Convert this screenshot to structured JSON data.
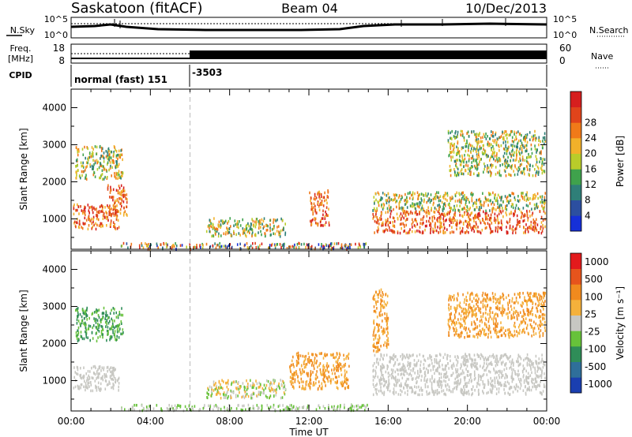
{
  "header": {
    "station": "Saskatoon (fitACF)",
    "beam": "Beam 04",
    "date": "10/Dec/2013"
  },
  "strips": {
    "nsky_label": "N.Sky",
    "nsearch_label": "N.Search",
    "nsky_ticks": [
      "10^5",
      "10^0"
    ],
    "nsearch_ticks": [
      "10^5",
      "10^0"
    ],
    "freq_label_1": "Freq.",
    "freq_label_2": "[MHz]",
    "freq_ticks": [
      "18",
      "8"
    ],
    "nave_label": "Nave",
    "nave_ticks": [
      "60",
      "0"
    ],
    "cpid_label": "CPID",
    "cpid_mode": "normal (fast) 151",
    "cpid_alt": "-3503"
  },
  "chart_data": [
    {
      "type": "heatmap",
      "name": "Power",
      "ylabel": "Slant Range [km]",
      "xlabel": "",
      "x_ticks": [
        "00:00",
        "04:00",
        "08:00",
        "12:00",
        "16:00",
        "20:00",
        "00:00"
      ],
      "y_ticks": [
        1000,
        2000,
        3000,
        4000
      ],
      "ylim": [
        180,
        4500
      ],
      "xlim_hours": [
        0,
        24
      ],
      "colorbar_label": "Power [dB]",
      "colorbar_ticks": [
        "4",
        "8",
        "12",
        "16",
        "20",
        "24",
        "28"
      ],
      "colors": [
        "#1630d8",
        "#2c4fa0",
        "#2f7f78",
        "#3fa24c",
        "#b9cc2a",
        "#f2b12a",
        "#f07a19",
        "#e0441b",
        "#d61e1e"
      ],
      "features": [
        {
          "t0": 0.1,
          "t1": 2.4,
          "r0": 760,
          "r1": 1420,
          "level": "high"
        },
        {
          "t0": 1.8,
          "t1": 2.8,
          "r0": 1100,
          "r1": 1950,
          "level": "high"
        },
        {
          "t0": 0.2,
          "t1": 2.6,
          "r0": 2100,
          "r1": 3000,
          "level": "medium"
        },
        {
          "t0": 2.5,
          "t1": 15.0,
          "r0": 220,
          "r1": 380,
          "level": "mixed"
        },
        {
          "t0": 6.8,
          "t1": 10.8,
          "r0": 560,
          "r1": 1050,
          "level": "medium"
        },
        {
          "t0": 12.0,
          "t1": 13.0,
          "r0": 850,
          "r1": 1800,
          "level": "high"
        },
        {
          "t0": 15.2,
          "t1": 23.9,
          "r0": 650,
          "r1": 1250,
          "level": "high"
        },
        {
          "t0": 15.2,
          "t1": 23.9,
          "r0": 1250,
          "r1": 1750,
          "level": "medium"
        },
        {
          "t0": 19.0,
          "t1": 23.9,
          "r0": 2200,
          "r1": 3400,
          "level": "medium"
        }
      ]
    },
    {
      "type": "heatmap",
      "name": "Velocity",
      "ylabel": "Slant Range [km]",
      "xlabel": "Time UT",
      "x_ticks": [
        "00:00",
        "04:00",
        "08:00",
        "12:00",
        "16:00",
        "20:00",
        "00:00"
      ],
      "y_ticks": [
        1000,
        2000,
        3000,
        4000
      ],
      "ylim": [
        180,
        4500
      ],
      "xlim_hours": [
        0,
        24
      ],
      "colorbar_label": "Velocity [m s⁻¹]",
      "colorbar_ticks": [
        "1000",
        "500",
        "100",
        "25",
        "-25",
        "-100",
        "-500",
        "-1000"
      ],
      "colors": [
        "#1a3fb0",
        "#2f6f9a",
        "#2f8d58",
        "#67c23a",
        "#c7c7c2",
        "#f5b13b",
        "#f08a1e",
        "#e6541c",
        "#e31a1c"
      ],
      "features": [
        {
          "t0": 0.1,
          "t1": 2.4,
          "r0": 760,
          "r1": 1420,
          "level": "near-zero"
        },
        {
          "t0": 0.2,
          "t1": 2.6,
          "r0": 2100,
          "r1": 3000,
          "level": "positive"
        },
        {
          "t0": 2.5,
          "t1": 15.0,
          "r0": 220,
          "r1": 380,
          "level": "positive-small"
        },
        {
          "t0": 6.8,
          "t1": 10.8,
          "r0": 560,
          "r1": 1050,
          "level": "mixed"
        },
        {
          "t0": 11.0,
          "t1": 14.0,
          "r0": 800,
          "r1": 1800,
          "level": "negative"
        },
        {
          "t0": 15.2,
          "t1": 23.9,
          "r0": 650,
          "r1": 1750,
          "level": "near-zero"
        },
        {
          "t0": 15.2,
          "t1": 16.0,
          "r0": 1800,
          "r1": 3500,
          "level": "negative"
        },
        {
          "t0": 19.0,
          "t1": 23.9,
          "r0": 2200,
          "r1": 3400,
          "level": "negative"
        }
      ]
    }
  ]
}
